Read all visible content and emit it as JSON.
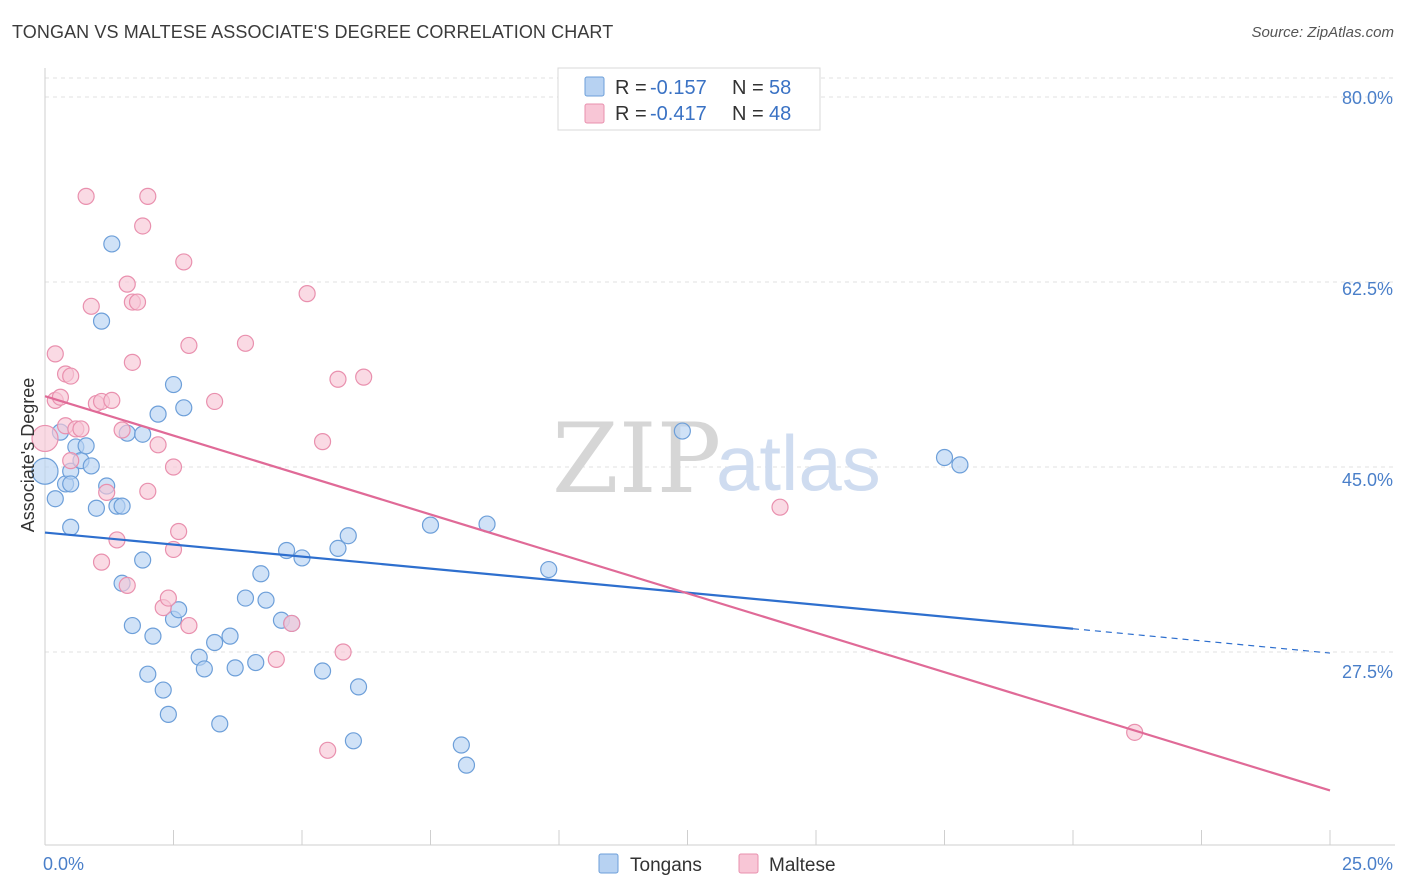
{
  "title": "TONGAN VS MALTESE ASSOCIATE'S DEGREE CORRELATION CHART",
  "source": "Source: ZipAtlas.com",
  "watermark": {
    "zip": "ZIP",
    "atlas": "atlas"
  },
  "colors": {
    "tongans_fill": "#b7d2f2",
    "tongans_stroke": "#6d9fd9",
    "tongans_line": "#2e6fce",
    "maltese_fill": "#f8c6d6",
    "maltese_stroke": "#e990ae",
    "maltese_line": "#e06a97",
    "tick_text": "#4a7fc9",
    "grid": "#e2e2e2"
  },
  "legend": {
    "r_label": "R =",
    "n_label": "N =",
    "tongans": {
      "r": "-0.157",
      "n": "58"
    },
    "maltese": {
      "r": "-0.417",
      "n": "48"
    }
  },
  "bottom_legend": {
    "tongans": "Tongans",
    "maltese": "Maltese"
  },
  "chart_data": {
    "type": "scatter",
    "title": "TONGAN VS MALTESE ASSOCIATE'S DEGREE CORRELATION CHART",
    "xlabel": "",
    "ylabel": "Associate's Degree",
    "xlim": [
      0,
      25
    ],
    "ylim": [
      10,
      83
    ],
    "x_tick_labels": [
      "0.0%",
      "25.0%"
    ],
    "y_ticks": [
      27.5,
      45.0,
      62.5,
      80.0
    ],
    "y_tick_labels": [
      "27.5%",
      "45.0%",
      "62.5%",
      "80.0%"
    ],
    "series": [
      {
        "name": "Tongans",
        "points": [
          [
            0.0,
            44.6
          ],
          [
            0.2,
            42.0
          ],
          [
            0.3,
            48.3
          ],
          [
            0.4,
            43.4
          ],
          [
            0.5,
            39.3
          ],
          [
            0.5,
            44.6
          ],
          [
            0.5,
            43.4
          ],
          [
            0.6,
            46.9
          ],
          [
            0.7,
            45.6
          ],
          [
            0.8,
            47.0
          ],
          [
            0.9,
            45.1
          ],
          [
            1.0,
            41.1
          ],
          [
            1.1,
            58.8
          ],
          [
            1.2,
            43.2
          ],
          [
            1.3,
            66.1
          ],
          [
            1.4,
            41.3
          ],
          [
            1.5,
            41.3
          ],
          [
            1.5,
            34.0
          ],
          [
            1.6,
            48.2
          ],
          [
            1.7,
            30.0
          ],
          [
            1.9,
            48.1
          ],
          [
            1.9,
            36.2
          ],
          [
            2.0,
            25.4
          ],
          [
            2.1,
            29.0
          ],
          [
            2.2,
            50.0
          ],
          [
            2.3,
            23.9
          ],
          [
            2.4,
            21.6
          ],
          [
            2.5,
            30.6
          ],
          [
            2.5,
            52.8
          ],
          [
            2.6,
            31.5
          ],
          [
            2.7,
            50.6
          ],
          [
            3.0,
            27.0
          ],
          [
            3.1,
            25.9
          ],
          [
            3.3,
            28.4
          ],
          [
            3.4,
            20.7
          ],
          [
            3.6,
            29.0
          ],
          [
            3.7,
            26.0
          ],
          [
            3.9,
            32.6
          ],
          [
            4.1,
            26.5
          ],
          [
            4.2,
            34.9
          ],
          [
            4.3,
            32.4
          ],
          [
            4.6,
            30.5
          ],
          [
            4.7,
            37.1
          ],
          [
            4.8,
            30.2
          ],
          [
            5.0,
            36.4
          ],
          [
            5.4,
            25.7
          ],
          [
            5.7,
            37.3
          ],
          [
            5.9,
            38.5
          ],
          [
            6.0,
            19.1
          ],
          [
            6.1,
            24.2
          ],
          [
            7.5,
            39.5
          ],
          [
            8.1,
            18.7
          ],
          [
            8.2,
            16.8
          ],
          [
            8.6,
            39.6
          ],
          [
            9.8,
            35.3
          ],
          [
            12.4,
            48.4
          ],
          [
            17.5,
            45.9
          ],
          [
            17.8,
            45.2
          ]
        ],
        "fit": {
          "x": [
            0.0,
            20.0
          ],
          "y": [
            38.8,
            29.7
          ]
        },
        "fit_extension": {
          "x": [
            20.0,
            25.0
          ],
          "y": [
            29.7,
            27.4
          ]
        }
      },
      {
        "name": "Maltese",
        "points": [
          [
            0.0,
            47.7
          ],
          [
            0.2,
            51.3
          ],
          [
            0.2,
            55.7
          ],
          [
            0.3,
            51.6
          ],
          [
            0.4,
            53.8
          ],
          [
            0.4,
            48.9
          ],
          [
            0.5,
            53.6
          ],
          [
            0.5,
            45.6
          ],
          [
            0.6,
            48.6
          ],
          [
            0.7,
            48.6
          ],
          [
            0.8,
            70.6
          ],
          [
            0.9,
            60.2
          ],
          [
            1.0,
            51.0
          ],
          [
            1.1,
            51.2
          ],
          [
            1.1,
            36.0
          ],
          [
            1.2,
            42.6
          ],
          [
            1.3,
            51.3
          ],
          [
            1.4,
            38.1
          ],
          [
            1.5,
            48.5
          ],
          [
            1.6,
            33.8
          ],
          [
            1.6,
            62.3
          ],
          [
            1.7,
            54.9
          ],
          [
            1.7,
            60.6
          ],
          [
            1.8,
            60.6
          ],
          [
            1.9,
            67.8
          ],
          [
            2.0,
            70.6
          ],
          [
            2.0,
            42.7
          ],
          [
            2.2,
            47.1
          ],
          [
            2.3,
            31.7
          ],
          [
            2.4,
            32.6
          ],
          [
            2.5,
            45.0
          ],
          [
            2.5,
            37.2
          ],
          [
            2.6,
            38.9
          ],
          [
            2.7,
            64.4
          ],
          [
            2.8,
            30.0
          ],
          [
            2.8,
            56.5
          ],
          [
            3.3,
            51.2
          ],
          [
            3.9,
            56.7
          ],
          [
            4.5,
            26.8
          ],
          [
            4.8,
            30.2
          ],
          [
            5.1,
            61.4
          ],
          [
            5.4,
            47.4
          ],
          [
            5.5,
            18.2
          ],
          [
            5.7,
            53.3
          ],
          [
            5.8,
            27.5
          ],
          [
            6.2,
            53.5
          ],
          [
            14.3,
            41.2
          ],
          [
            21.2,
            19.9
          ]
        ],
        "fit": {
          "x": [
            0.0,
            25.0
          ],
          "y": [
            51.7,
            14.4
          ]
        }
      }
    ]
  }
}
